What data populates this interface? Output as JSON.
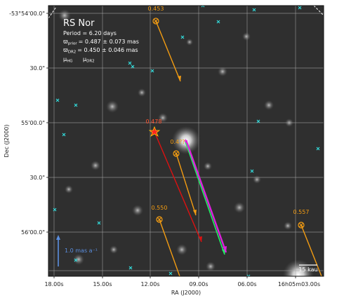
{
  "figure": {
    "y_ticks": [
      "-53°54'00.0\"",
      "30.0\"",
      "55'00.0\"",
      "30.0\"",
      "56'00.0\""
    ],
    "x_ticks": [
      "18.00s",
      "15.00s",
      "12.00s",
      "09.00s",
      "06.00s",
      "16h05m03.00s"
    ],
    "xlabel": "RA (J2000)",
    "ylabel": "Dec (J2000)"
  },
  "legend": {
    "title": "RS Nor",
    "period": "Period =   6.20 days",
    "prior_sym": "ϖ",
    "prior_sub": "prior",
    "prior_val": "= 0.487 ± 0.073 mas",
    "dr2_sym": "ϖ",
    "dr2_sub": "DR2",
    "dr2_val": "= 0.450 ± 0.046 mas",
    "mu_hg": "μ",
    "mu_hg_sub": "HG",
    "mu_dr2": "μ",
    "mu_dr2_sub": "DR2"
  },
  "colors": {
    "hg": "#22ee66",
    "dr2": "#dd22dd",
    "companion": "#f39c12",
    "cepheid_arrow": "#dd1111",
    "field_star": "#33dddd",
    "scale_arrow": "#5b8fe0"
  },
  "parallax_labels": [
    "0.453",
    "0.478",
    "0.4??",
    "0.550",
    "0.557"
  ],
  "scale": {
    "arrow_label": "1.0 mas a⁻¹",
    "bar_label": "15 kau"
  }
}
